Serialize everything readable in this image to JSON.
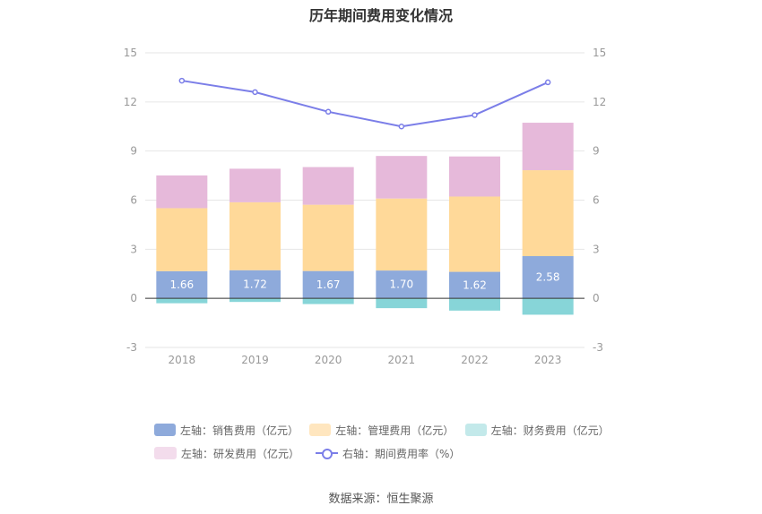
{
  "chart_data": {
    "type": "bar",
    "title": "历年期间费用变化情况",
    "categories": [
      "2018",
      "2019",
      "2020",
      "2021",
      "2022",
      "2023"
    ],
    "left_axis": {
      "ticks": [
        "15",
        "12",
        "9",
        "6",
        "3",
        "0",
        "-3"
      ],
      "ylim": [
        -3,
        15
      ]
    },
    "right_axis": {
      "ticks": [
        "15",
        "12",
        "9",
        "6",
        "3",
        "0",
        "-3"
      ],
      "ylim": [
        -3,
        15
      ]
    },
    "series": [
      {
        "name": "左轴：销售费用（亿元）",
        "axis": "left",
        "kind": "bar",
        "color": "#8eaadb",
        "values": [
          1.66,
          1.72,
          1.67,
          1.7,
          1.62,
          2.58
        ],
        "labels": [
          "1.66",
          "1.72",
          "1.67",
          "1.70",
          "1.62",
          "2.58"
        ]
      },
      {
        "name": "左轴：管理费用（亿元）",
        "axis": "left",
        "kind": "bar",
        "color": "#ffd999",
        "values": [
          3.85,
          4.15,
          4.05,
          4.4,
          4.6,
          5.25
        ]
      },
      {
        "name": "左轴：财务费用（亿元）",
        "axis": "left",
        "kind": "bar",
        "color": "#87d5d8",
        "values": [
          -0.3,
          -0.22,
          -0.35,
          -0.6,
          -0.75,
          -1.0
        ]
      },
      {
        "name": "左轴：研发费用（亿元）",
        "axis": "left",
        "kind": "bar",
        "color": "#e6b9da",
        "values": [
          2.0,
          2.05,
          2.3,
          2.6,
          2.45,
          2.9
        ]
      },
      {
        "name": "右轴：期间费用率（%）",
        "axis": "right",
        "kind": "line",
        "color": "#7b7ee8",
        "values": [
          13.3,
          12.6,
          11.4,
          10.5,
          11.2,
          13.2
        ]
      }
    ],
    "grid": true,
    "legend_position": "bottom"
  },
  "legend": {
    "sales": "左轴：销售费用（亿元）",
    "admin": "左轴：管理费用（亿元）",
    "finance": "左轴：财务费用（亿元）",
    "rd": "左轴：研发费用（亿元）",
    "rate": "右轴：期间费用率（%）"
  },
  "source": "数据来源：恒生聚源"
}
